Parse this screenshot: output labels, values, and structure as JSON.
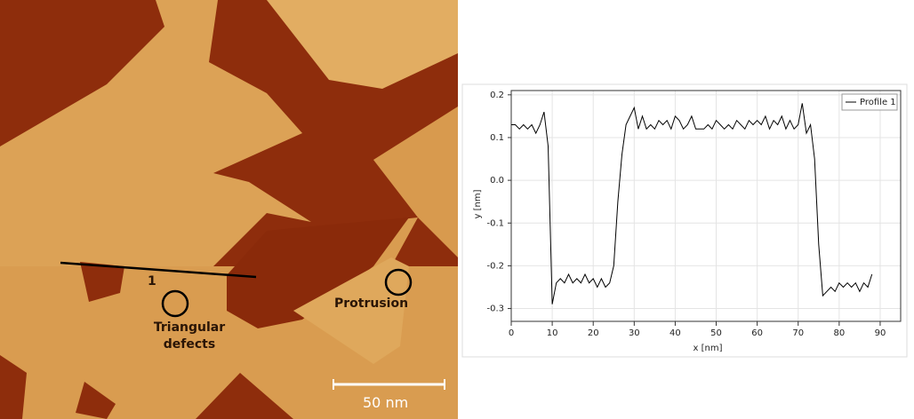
{
  "image": {
    "annotations": [
      "1",
      "Triangular defects",
      "Protrusion"
    ],
    "scale_bar": "50 nm"
  },
  "chart_data": {
    "type": "line",
    "xlabel": "x [nm]",
    "ylabel": "y [nm]",
    "x": [
      0,
      1,
      2,
      3,
      4,
      5,
      6,
      7,
      8,
      9,
      10,
      11,
      12,
      13,
      14,
      15,
      16,
      17,
      18,
      19,
      20,
      21,
      22,
      23,
      24,
      25,
      26,
      27,
      28,
      29,
      30,
      31,
      32,
      33,
      34,
      35,
      36,
      37,
      38,
      39,
      40,
      41,
      42,
      43,
      44,
      45,
      46,
      47,
      48,
      49,
      50,
      51,
      52,
      53,
      54,
      55,
      56,
      57,
      58,
      59,
      60,
      61,
      62,
      63,
      64,
      65,
      66,
      67,
      68,
      69,
      70,
      71,
      72,
      73,
      74,
      75,
      76,
      77,
      78,
      79,
      80,
      81,
      82,
      83,
      84,
      85,
      86,
      87,
      88
    ],
    "series": [
      {
        "name": "Profile 1",
        "color": "#000000",
        "values": [
          0.13,
          0.13,
          0.12,
          0.13,
          0.12,
          0.13,
          0.11,
          0.13,
          0.16,
          0.08,
          -0.29,
          -0.24,
          -0.23,
          -0.24,
          -0.22,
          -0.24,
          -0.23,
          -0.24,
          -0.22,
          -0.24,
          -0.23,
          -0.25,
          -0.23,
          -0.25,
          -0.24,
          -0.2,
          -0.05,
          0.06,
          0.13,
          0.15,
          0.17,
          0.12,
          0.15,
          0.12,
          0.13,
          0.12,
          0.14,
          0.13,
          0.14,
          0.12,
          0.15,
          0.14,
          0.12,
          0.13,
          0.15,
          0.12,
          0.12,
          0.12,
          0.13,
          0.12,
          0.14,
          0.13,
          0.12,
          0.13,
          0.12,
          0.14,
          0.13,
          0.12,
          0.14,
          0.13,
          0.14,
          0.13,
          0.15,
          0.12,
          0.14,
          0.13,
          0.15,
          0.12,
          0.14,
          0.12,
          0.13,
          0.18,
          0.11,
          0.13,
          0.05,
          -0.15,
          -0.27,
          -0.26,
          -0.25,
          -0.26,
          -0.24,
          -0.25,
          -0.24,
          -0.25,
          -0.24,
          -0.26,
          -0.24,
          -0.25,
          -0.22
        ]
      }
    ],
    "xlim": [
      0,
      95
    ],
    "xticks": [
      0,
      10,
      20,
      30,
      40,
      50,
      60,
      70,
      80,
      90
    ],
    "ylim": [
      -0.33,
      0.21
    ],
    "yticks": [
      0.2,
      0.1,
      {
        "value": 0,
        "label": "0.0"
      },
      -0.1,
      -0.2,
      -0.3
    ],
    "grid": true,
    "legend": "upper right"
  }
}
